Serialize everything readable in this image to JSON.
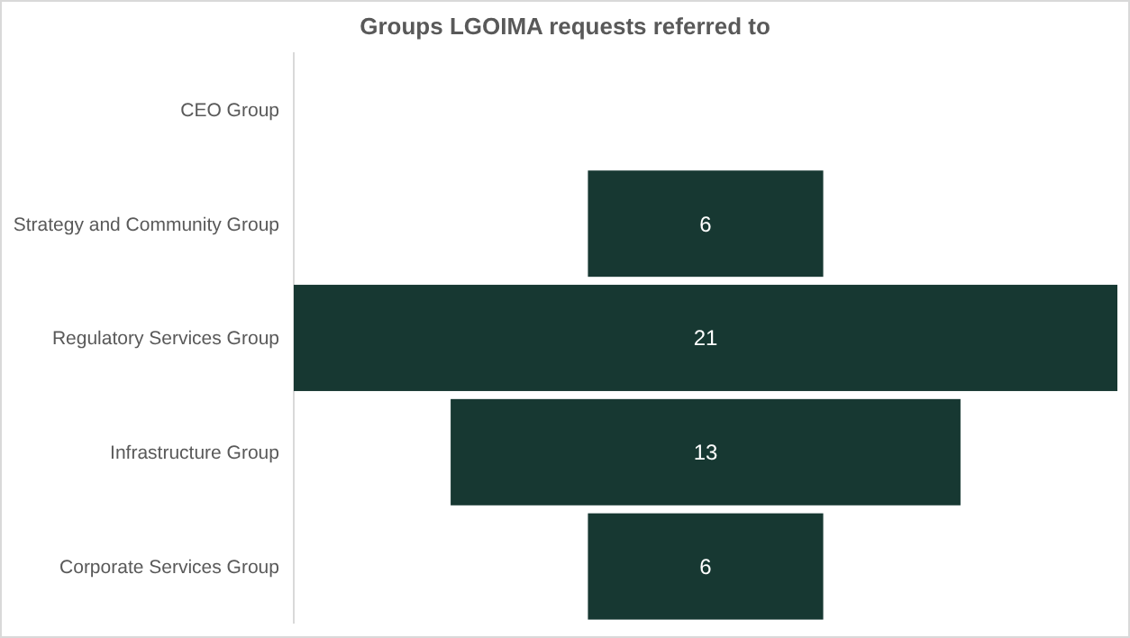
{
  "chart_data": {
    "type": "other",
    "title": "Groups LGOIMA requests referred to",
    "categories": [
      "CEO Group",
      "Strategy and Community Group",
      "Regulatory Services Group",
      "Infrastructure Group",
      "Corporate Services Group"
    ],
    "values": [
      null,
      6,
      21,
      13,
      6
    ],
    "color": "#173832",
    "data_labels": true
  }
}
